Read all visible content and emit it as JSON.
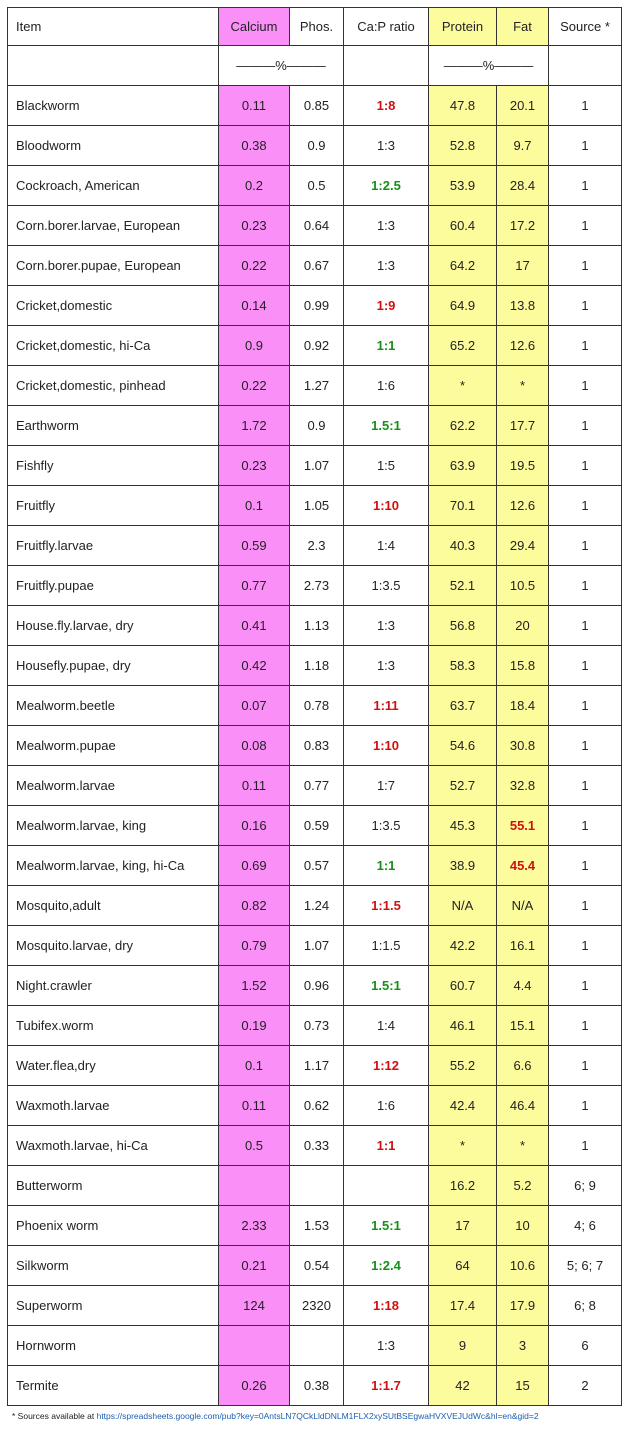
{
  "table": {
    "header": [
      "Item",
      "Calcium",
      "Phos.",
      "Ca:P ratio",
      "Protein",
      "Fat",
      "Source *"
    ],
    "units": {
      "minerals": "———%———",
      "nutrients": "———%———"
    },
    "rows": [
      [
        "Blackworm",
        "0.11",
        "0.85",
        "1:8",
        "47.8",
        "20.1",
        "1"
      ],
      [
        "Bloodworm",
        "0.38",
        "0.9",
        "1:3",
        "52.8",
        "9.7",
        "1"
      ],
      [
        "Cockroach, American",
        "0.2",
        "0.5",
        "1:2.5",
        "53.9",
        "28.4",
        "1"
      ],
      [
        "Corn.borer.larvae, European",
        "0.23",
        "0.64",
        "1:3",
        "60.4",
        "17.2",
        "1"
      ],
      [
        "Corn.borer.pupae, European",
        "0.22",
        "0.67",
        "1:3",
        "64.2",
        "17",
        "1"
      ],
      [
        "Cricket,domestic",
        "0.14",
        "0.99",
        "1:9",
        "64.9",
        "13.8",
        "1"
      ],
      [
        "Cricket,domestic, hi-Ca",
        "0.9",
        "0.92",
        "1:1",
        "65.2",
        "12.6",
        "1"
      ],
      [
        "Cricket,domestic, pinhead",
        "0.22",
        "1.27",
        "1:6",
        "*",
        "*",
        "1"
      ],
      [
        "Earthworm",
        "1.72",
        "0.9",
        "1.5:1",
        "62.2",
        "17.7",
        "1"
      ],
      [
        "Fishfly",
        "0.23",
        "1.07",
        "1:5",
        "63.9",
        "19.5",
        "1"
      ],
      [
        "Fruitfly",
        "0.1",
        "1.05",
        "1:10",
        "70.1",
        "12.6",
        "1"
      ],
      [
        "Fruitfly.larvae",
        "0.59",
        "2.3",
        "1:4",
        "40.3",
        "29.4",
        "1"
      ],
      [
        "Fruitfly.pupae",
        "0.77",
        "2.73",
        "1:3.5",
        "52.1",
        "10.5",
        "1"
      ],
      [
        "House.fly.larvae, dry",
        "0.41",
        "1.13",
        "1:3",
        "56.8",
        "20",
        "1"
      ],
      [
        "Housefly.pupae, dry",
        "0.42",
        "1.18",
        "1:3",
        "58.3",
        "15.8",
        "1"
      ],
      [
        "Mealworm.beetle",
        "0.07",
        "0.78",
        "1:11",
        "63.7",
        "18.4",
        "1"
      ],
      [
        "Mealworm.pupae",
        "0.08",
        "0.83",
        "1:10",
        "54.6",
        "30.8",
        "1"
      ],
      [
        "Mealworm.larvae",
        "0.11",
        "0.77",
        "1:7",
        "52.7",
        "32.8",
        "1"
      ],
      [
        "Mealworm.larvae, king",
        "0.16",
        "0.59",
        "1:3.5",
        "45.3",
        "55.1",
        "1"
      ],
      [
        "Mealworm.larvae, king, hi-Ca",
        "0.69",
        "0.57",
        "1:1",
        "38.9",
        "45.4",
        "1"
      ],
      [
        "Mosquito,adult",
        "0.82",
        "1.24",
        "1:1.5",
        "N/A",
        "N/A",
        "1"
      ],
      [
        "Mosquito.larvae, dry",
        "0.79",
        "1.07",
        "1:1.5",
        "42.2",
        "16.1",
        "1"
      ],
      [
        "Night.crawler",
        "1.52",
        "0.96",
        "1.5:1",
        "60.7",
        "4.4",
        "1"
      ],
      [
        "Tubifex.worm",
        "0.19",
        "0.73",
        "1:4",
        "46.1",
        "15.1",
        "1"
      ],
      [
        "Water.flea,dry",
        "0.1",
        "1.17",
        "1:12",
        "55.2",
        "6.6",
        "1"
      ],
      [
        "Waxmoth.larvae",
        "0.11",
        "0.62",
        "1:6",
        "42.4",
        "46.4",
        "1"
      ],
      [
        "Waxmoth.larvae, hi-Ca",
        "0.5",
        "0.33",
        "1:1",
        "*",
        "*",
        "1"
      ],
      [
        "Butterworm",
        null,
        null,
        null,
        "16.2",
        "5.2",
        "6; 9"
      ],
      [
        "Phoenix worm",
        "2.33",
        "1.53",
        "1.5:1",
        "17",
        "10",
        "4; 6"
      ],
      [
        "Silkworm",
        "0.21",
        "0.54",
        "1:2.4",
        "64",
        "10.6",
        "5; 6; 7"
      ],
      [
        "Superworm",
        "124",
        "2320",
        "1:18",
        "17.4",
        "17.9",
        "6; 8"
      ],
      [
        "Hornworm",
        null,
        null,
        "1:3",
        "9",
        "3",
        "6"
      ],
      [
        "Termite",
        "0.26",
        "0.38",
        "1:1.7",
        "42",
        "15",
        "2"
      ]
    ]
  },
  "footnote": {
    "text": "* Sources available at",
    "link": "https://spreadsheets.google.com/pub?key=0AntsLN7QCkLldDNLM1FLX2xySUtBSEgwaHVXVEJUdWc&hl=en&gid=2"
  }
}
